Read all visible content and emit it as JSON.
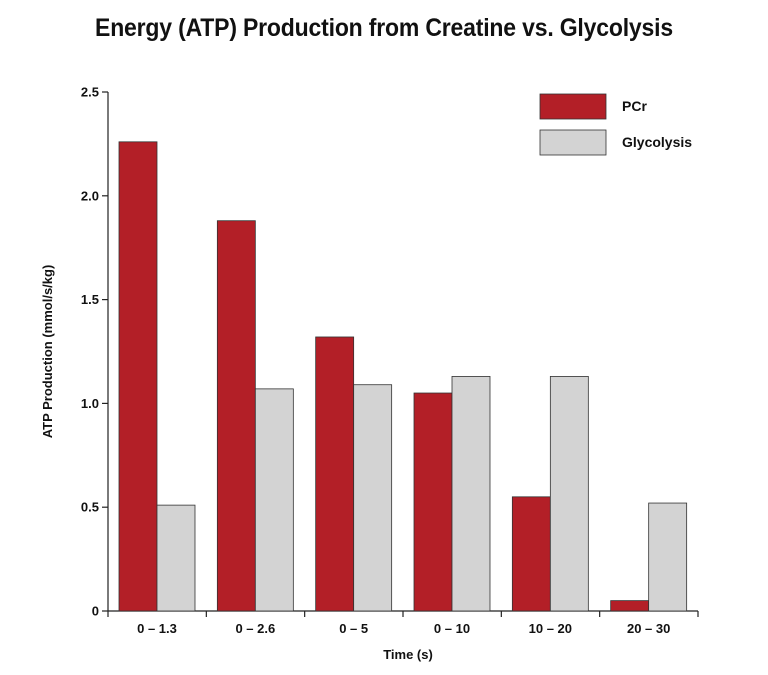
{
  "chart_data": {
    "type": "bar",
    "title": "Energy (ATP) Production from Creatine vs. Glycolysis",
    "xlabel": "Time (s)",
    "ylabel": "ATP Production (mmol/s/kg)",
    "ylim": [
      0,
      2.5
    ],
    "yticks": [
      0,
      0.5,
      1.0,
      1.5,
      2.0,
      2.5
    ],
    "ytick_labels": [
      "0",
      "0.5",
      "1.0",
      "1.5",
      "2.0",
      "2.5"
    ],
    "categories": [
      "0 – 1.3",
      "0 – 2.6",
      "0 – 5",
      "0 – 10",
      "10 – 20",
      "20 – 30"
    ],
    "series": [
      {
        "name": "PCr",
        "color": "#b31f27",
        "values": [
          2.26,
          1.88,
          1.32,
          1.05,
          0.55,
          0.05
        ]
      },
      {
        "name": "Glycolysis",
        "color": "#d3d3d3",
        "values": [
          0.51,
          1.07,
          1.09,
          1.13,
          1.13,
          0.52
        ]
      }
    ],
    "legend_position": "top-right",
    "grid": false
  }
}
